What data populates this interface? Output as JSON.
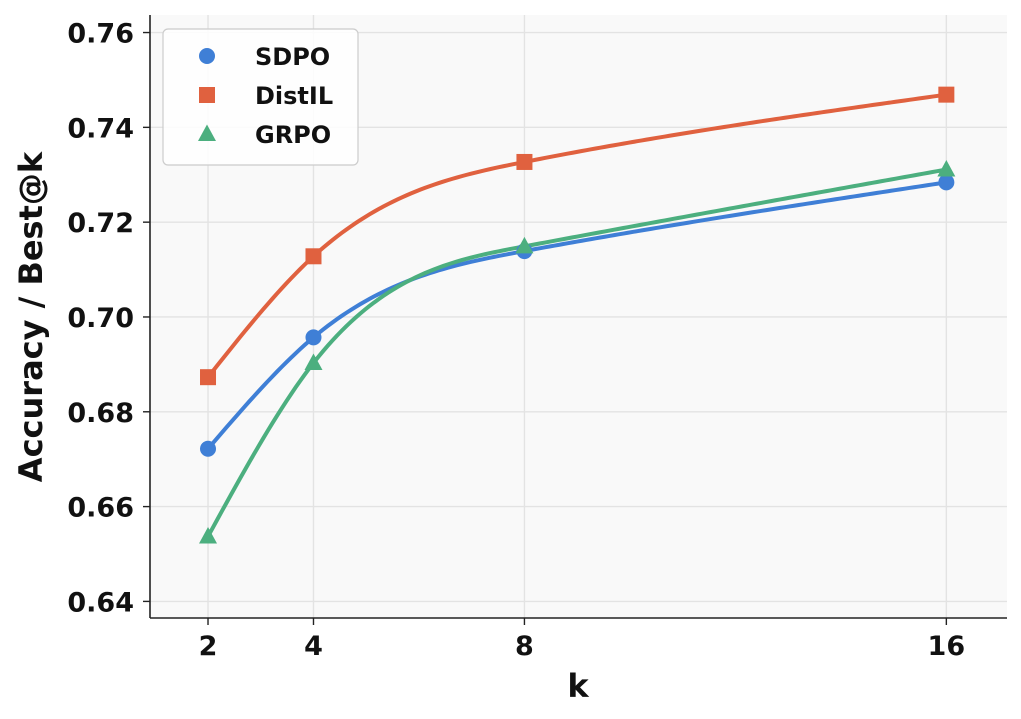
{
  "chart_data": {
    "type": "line",
    "title": "",
    "xlabel": "k",
    "ylabel": "Accuracy / Best@k",
    "x": [
      2,
      4,
      8,
      16
    ],
    "x_ticks": [
      "2",
      "4",
      "8",
      "16"
    ],
    "xlim": [
      0.9,
      17.15
    ],
    "ylim": [
      0.6365,
      0.7637
    ],
    "y_ticks": [
      "0.64",
      "0.66",
      "0.68",
      "0.70",
      "0.72",
      "0.74",
      "0.76"
    ],
    "grid": true,
    "legend_position": "top-left",
    "series": [
      {
        "name": "SDPO",
        "values": [
          0.6722,
          0.6957,
          0.7139,
          0.7284
        ],
        "color": "#3f7fd6",
        "marker": "circle"
      },
      {
        "name": "DistIL",
        "values": [
          0.6873,
          0.7128,
          0.7327,
          0.7469
        ],
        "color": "#e0613f",
        "marker": "square"
      },
      {
        "name": "GRPO",
        "values": [
          0.6537,
          0.6903,
          0.7149,
          0.7311
        ],
        "color": "#4caf7f",
        "marker": "triangle"
      }
    ]
  }
}
